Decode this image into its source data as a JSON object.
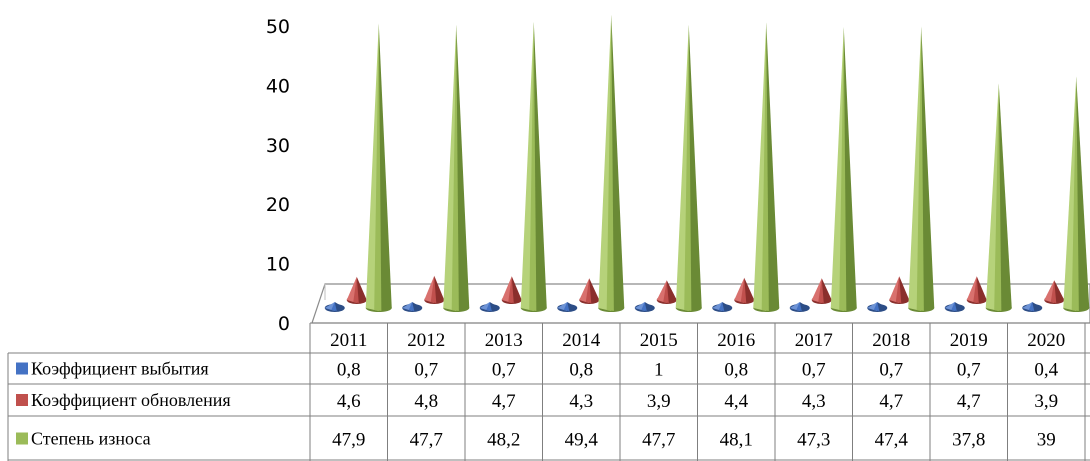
{
  "chart_data": {
    "type": "bar",
    "style": "3d-cone",
    "categories": [
      "2011",
      "2012",
      "2013",
      "2014",
      "2015",
      "2016",
      "2017",
      "2018",
      "2019",
      "2020"
    ],
    "series": [
      {
        "name": "Коэффициент выбытия",
        "color": "#4472C4",
        "values": [
          0.8,
          0.7,
          0.7,
          0.8,
          1,
          0.8,
          0.7,
          0.7,
          0.7,
          0.4
        ],
        "labels": [
          "0,8",
          "0,7",
          "0,7",
          "0,8",
          "1",
          "0,8",
          "0,7",
          "0,7",
          "0,7",
          "0,4"
        ]
      },
      {
        "name": "Коэффициент обновления",
        "color": "#C0504D",
        "values": [
          4.6,
          4.8,
          4.7,
          4.3,
          3.9,
          4.4,
          4.3,
          4.7,
          4.7,
          3.9
        ],
        "labels": [
          "4,6",
          "4,8",
          "4,7",
          "4,3",
          "3,9",
          "4,4",
          "4,3",
          "4,7",
          "4,7",
          "3,9"
        ]
      },
      {
        "name": "Степень износа",
        "color": "#9BBB59",
        "values": [
          47.9,
          47.7,
          48.2,
          49.4,
          47.7,
          48.1,
          47.3,
          47.4,
          37.8,
          39
        ],
        "labels": [
          "47,9",
          "47,7",
          "48,2",
          "49,4",
          "47,7",
          "48,1",
          "47,3",
          "47,4",
          "37,8",
          "39"
        ]
      }
    ],
    "yticks": [
      "0",
      "10",
      "20",
      "30",
      "40",
      "50"
    ],
    "ylim": [
      0,
      50
    ],
    "grid": false,
    "legend": "data-table"
  }
}
